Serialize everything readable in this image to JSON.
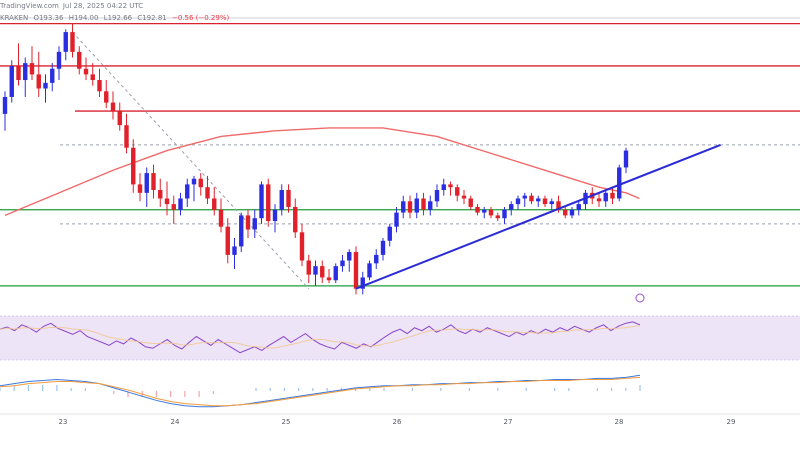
{
  "header": {
    "source": "TradingView.com",
    "timestamp": "Jul 28, 2025 04:22 UTC"
  },
  "ohlc": {
    "exchange": "KRAKEN",
    "open": "O193.36",
    "high": "H194.00",
    "low": "L192.66",
    "close": "C192.81",
    "change": "−0.56 (−0.29%)"
  },
  "colors": {
    "up": "#2a2ee0",
    "down": "#e0202a",
    "resistance": "#d92230",
    "support": "#1f9d3a",
    "ma": "#f06a6a",
    "trendline": "#2b2bd6",
    "rsi_band": "#ede4f7",
    "rsi_line": "#8a45c9",
    "macd_line": "#3a7be0",
    "signal_line": "#f39a3c",
    "dashed": "#9aa0ad"
  },
  "chart_data": {
    "type": "candlestick",
    "x_axis_labels": [
      "23",
      "24",
      "25",
      "26",
      "27",
      "28",
      "29"
    ],
    "y_range": [
      0,
      100
    ],
    "candles": [
      {
        "o": 66,
        "h": 74,
        "l": 60,
        "c": 72
      },
      {
        "o": 72,
        "h": 85,
        "l": 70,
        "c": 83
      },
      {
        "o": 83,
        "h": 91,
        "l": 76,
        "c": 78
      },
      {
        "o": 78,
        "h": 86,
        "l": 72,
        "c": 84
      },
      {
        "o": 84,
        "h": 90,
        "l": 78,
        "c": 80
      },
      {
        "o": 80,
        "h": 88,
        "l": 72,
        "c": 75
      },
      {
        "o": 75,
        "h": 80,
        "l": 70,
        "c": 77
      },
      {
        "o": 77,
        "h": 84,
        "l": 74,
        "c": 82
      },
      {
        "o": 82,
        "h": 90,
        "l": 78,
        "c": 88
      },
      {
        "o": 88,
        "h": 96,
        "l": 85,
        "c": 95
      },
      {
        "o": 95,
        "h": 98,
        "l": 86,
        "c": 88
      },
      {
        "o": 88,
        "h": 90,
        "l": 80,
        "c": 82
      },
      {
        "o": 82,
        "h": 86,
        "l": 78,
        "c": 80
      },
      {
        "o": 80,
        "h": 84,
        "l": 76,
        "c": 78
      },
      {
        "o": 78,
        "h": 82,
        "l": 72,
        "c": 74
      },
      {
        "o": 74,
        "h": 78,
        "l": 68,
        "c": 70
      },
      {
        "o": 70,
        "h": 74,
        "l": 64,
        "c": 67
      },
      {
        "o": 67,
        "h": 70,
        "l": 60,
        "c": 62
      },
      {
        "o": 62,
        "h": 66,
        "l": 52,
        "c": 54
      },
      {
        "o": 54,
        "h": 57,
        "l": 38,
        "c": 41
      },
      {
        "o": 41,
        "h": 45,
        "l": 35,
        "c": 38
      },
      {
        "o": 38,
        "h": 47,
        "l": 33,
        "c": 45
      },
      {
        "o": 45,
        "h": 48,
        "l": 36,
        "c": 39
      },
      {
        "o": 39,
        "h": 43,
        "l": 33,
        "c": 36
      },
      {
        "o": 36,
        "h": 42,
        "l": 30,
        "c": 34
      },
      {
        "o": 34,
        "h": 37,
        "l": 27,
        "c": 32
      },
      {
        "o": 32,
        "h": 38,
        "l": 30,
        "c": 36
      },
      {
        "o": 36,
        "h": 43,
        "l": 33,
        "c": 41
      },
      {
        "o": 41,
        "h": 44,
        "l": 35,
        "c": 43
      },
      {
        "o": 43,
        "h": 45,
        "l": 37,
        "c": 40
      },
      {
        "o": 40,
        "h": 44,
        "l": 34,
        "c": 36
      },
      {
        "o": 36,
        "h": 40,
        "l": 30,
        "c": 32
      },
      {
        "o": 32,
        "h": 36,
        "l": 24,
        "c": 26
      },
      {
        "o": 26,
        "h": 29,
        "l": 13,
        "c": 16
      },
      {
        "o": 16,
        "h": 22,
        "l": 11,
        "c": 19
      },
      {
        "o": 19,
        "h": 31,
        "l": 17,
        "c": 30
      },
      {
        "o": 30,
        "h": 32,
        "l": 22,
        "c": 25
      },
      {
        "o": 25,
        "h": 32,
        "l": 22,
        "c": 29
      },
      {
        "o": 29,
        "h": 42,
        "l": 27,
        "c": 41
      },
      {
        "o": 41,
        "h": 43,
        "l": 26,
        "c": 28
      },
      {
        "o": 28,
        "h": 34,
        "l": 24,
        "c": 32
      },
      {
        "o": 32,
        "h": 41,
        "l": 30,
        "c": 39
      },
      {
        "o": 39,
        "h": 41,
        "l": 31,
        "c": 33
      },
      {
        "o": 33,
        "h": 36,
        "l": 22,
        "c": 24
      },
      {
        "o": 24,
        "h": 27,
        "l": 12,
        "c": 14
      },
      {
        "o": 14,
        "h": 16,
        "l": 6,
        "c": 9
      },
      {
        "o": 9,
        "h": 14,
        "l": 5,
        "c": 12
      },
      {
        "o": 12,
        "h": 14,
        "l": 6,
        "c": 8
      },
      {
        "o": 8,
        "h": 11,
        "l": 6,
        "c": 7
      },
      {
        "o": 7,
        "h": 13,
        "l": 6,
        "c": 12
      },
      {
        "o": 12,
        "h": 16,
        "l": 10,
        "c": 14
      },
      {
        "o": 14,
        "h": 18,
        "l": 10,
        "c": 17
      },
      {
        "o": 17,
        "h": 19,
        "l": 2,
        "c": 4
      },
      {
        "o": 4,
        "h": 10,
        "l": 2,
        "c": 8
      },
      {
        "o": 8,
        "h": 14,
        "l": 7,
        "c": 13
      },
      {
        "o": 13,
        "h": 18,
        "l": 11,
        "c": 16
      },
      {
        "o": 16,
        "h": 22,
        "l": 14,
        "c": 21
      },
      {
        "o": 21,
        "h": 27,
        "l": 19,
        "c": 26
      },
      {
        "o": 26,
        "h": 33,
        "l": 24,
        "c": 31
      },
      {
        "o": 31,
        "h": 37,
        "l": 29,
        "c": 35
      },
      {
        "o": 35,
        "h": 37,
        "l": 29,
        "c": 31
      },
      {
        "o": 31,
        "h": 38,
        "l": 29,
        "c": 36
      },
      {
        "o": 36,
        "h": 38,
        "l": 30,
        "c": 32
      },
      {
        "o": 32,
        "h": 37,
        "l": 30,
        "c": 35
      },
      {
        "o": 35,
        "h": 41,
        "l": 33,
        "c": 39
      },
      {
        "o": 39,
        "h": 43,
        "l": 37,
        "c": 41
      },
      {
        "o": 41,
        "h": 42,
        "l": 37,
        "c": 40
      },
      {
        "o": 40,
        "h": 41,
        "l": 35,
        "c": 37
      },
      {
        "o": 37,
        "h": 39,
        "l": 34,
        "c": 36
      },
      {
        "o": 36,
        "h": 37,
        "l": 32,
        "c": 33
      },
      {
        "o": 33,
        "h": 34,
        "l": 30,
        "c": 31
      },
      {
        "o": 31,
        "h": 33,
        "l": 29,
        "c": 32
      },
      {
        "o": 32,
        "h": 33,
        "l": 29,
        "c": 30
      },
      {
        "o": 30,
        "h": 31,
        "l": 28,
        "c": 29
      },
      {
        "o": 29,
        "h": 33,
        "l": 27,
        "c": 32
      },
      {
        "o": 32,
        "h": 35,
        "l": 30,
        "c": 34
      },
      {
        "o": 34,
        "h": 37,
        "l": 32,
        "c": 36
      },
      {
        "o": 36,
        "h": 38,
        "l": 33,
        "c": 37
      },
      {
        "o": 37,
        "h": 38,
        "l": 34,
        "c": 35
      },
      {
        "o": 35,
        "h": 37,
        "l": 33,
        "c": 36
      },
      {
        "o": 36,
        "h": 37,
        "l": 33,
        "c": 34
      },
      {
        "o": 34,
        "h": 36,
        "l": 32,
        "c": 35
      },
      {
        "o": 35,
        "h": 37,
        "l": 31,
        "c": 32
      },
      {
        "o": 32,
        "h": 33,
        "l": 29,
        "c": 30
      },
      {
        "o": 30,
        "h": 33,
        "l": 29,
        "c": 32
      },
      {
        "o": 32,
        "h": 35,
        "l": 30,
        "c": 34
      },
      {
        "o": 34,
        "h": 39,
        "l": 32,
        "c": 38
      },
      {
        "o": 38,
        "h": 40,
        "l": 34,
        "c": 36
      },
      {
        "o": 36,
        "h": 38,
        "l": 33,
        "c": 35
      },
      {
        "o": 35,
        "h": 39,
        "l": 33,
        "c": 38
      },
      {
        "o": 38,
        "h": 40,
        "l": 34,
        "c": 36
      },
      {
        "o": 36,
        "h": 48,
        "l": 35,
        "c": 47
      },
      {
        "o": 47,
        "h": 54,
        "l": 45,
        "c": 53
      }
    ],
    "levels": {
      "resistance": [
        98,
        83,
        67
      ],
      "support": [
        32,
        5
      ],
      "dashed": [
        55,
        27
      ]
    },
    "moving_average": [
      [
        0,
        30
      ],
      [
        8,
        38
      ],
      [
        16,
        46
      ],
      [
        24,
        53
      ],
      [
        32,
        58
      ],
      [
        40,
        60
      ],
      [
        48,
        61
      ],
      [
        56,
        61
      ],
      [
        64,
        58
      ],
      [
        72,
        52
      ],
      [
        80,
        46
      ],
      [
        88,
        40
      ],
      [
        92,
        38
      ],
      [
        94,
        36
      ]
    ],
    "trendline": {
      "from": [
        52,
        4
      ],
      "to": [
        106,
        55
      ]
    },
    "falling_line": {
      "from": [
        10,
        95
      ],
      "to": [
        45,
        4
      ]
    },
    "rsi": [
      62,
      65,
      60,
      68,
      64,
      58,
      66,
      70,
      63,
      59,
      55,
      60,
      52,
      48,
      44,
      40,
      46,
      42,
      50,
      45,
      38,
      36,
      42,
      48,
      40,
      35,
      44,
      52,
      46,
      40,
      48,
      42,
      36,
      30,
      34,
      38,
      33,
      40,
      46,
      52,
      44,
      50,
      56,
      48,
      42,
      38,
      35,
      44,
      40,
      36,
      42,
      38,
      45,
      52,
      58,
      62,
      56,
      64,
      60,
      66,
      58,
      62,
      68,
      60,
      56,
      62,
      58,
      64,
      60,
      56,
      52,
      58,
      54,
      60,
      56,
      62,
      58,
      64,
      60,
      66,
      62,
      58,
      64,
      68,
      60,
      66,
      70,
      72,
      68
    ],
    "macd": [
      50,
      52,
      54,
      55,
      56,
      55,
      54,
      52,
      48,
      44,
      40,
      36,
      33,
      31,
      30,
      30,
      31,
      32,
      34,
      36,
      38,
      40,
      42,
      44,
      46,
      48,
      49,
      50,
      50,
      51,
      51,
      52,
      52,
      53,
      53,
      54,
      54,
      55,
      55,
      56,
      56,
      56,
      57,
      57,
      58,
      60
    ],
    "signal": [
      49,
      50,
      52,
      53,
      54,
      54,
      53,
      52,
      49,
      46,
      42,
      38,
      35,
      33,
      32,
      31,
      31,
      32,
      33,
      35,
      37,
      39,
      41,
      43,
      45,
      47,
      48,
      49,
      50,
      50,
      51,
      51,
      52,
      52,
      53,
      53,
      54,
      54,
      55,
      55,
      55,
      56,
      56,
      56,
      57,
      58
    ]
  }
}
